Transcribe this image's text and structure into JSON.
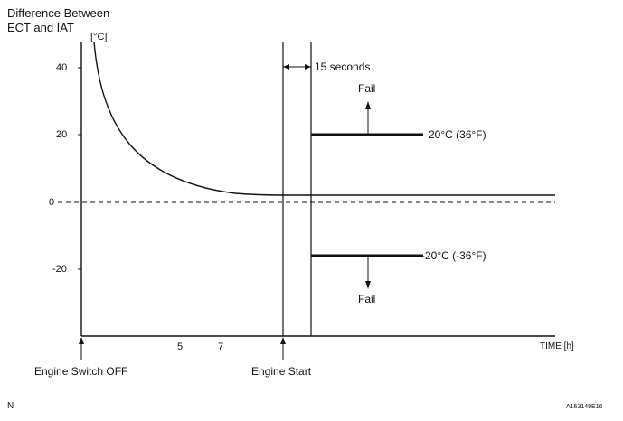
{
  "title_lines": [
    "Difference Between",
    "ECT and IAT"
  ],
  "y_unit": "[°C]",
  "y_ticks": [
    "40",
    "20",
    "0",
    "-20"
  ],
  "x_ticks": [
    "5",
    "7"
  ],
  "x_axis_label": "TIME [h]",
  "interval_label": "15 seconds",
  "upper_threshold_label": "20°C (36°F)",
  "lower_threshold_label": "-20°C (-36°F)",
  "fail_upper": "Fail",
  "fail_lower": "Fail",
  "event_engine_off": "Engine Switch OFF",
  "event_engine_start": "Engine Start",
  "corner_left": "N",
  "corner_right": "A163149E16"
}
